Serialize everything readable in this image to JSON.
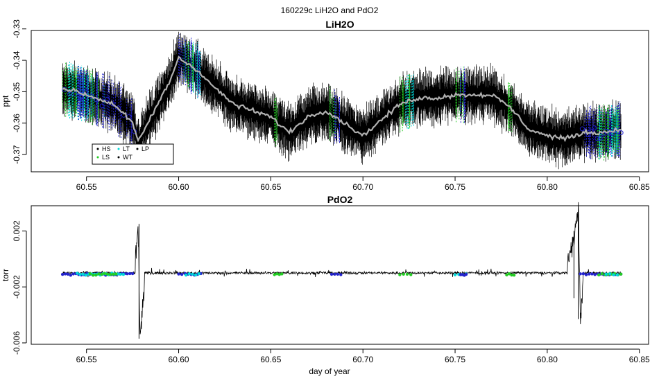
{
  "figure": {
    "suptitle": "160229c   LiH2O and PdO2",
    "xlabel": "day of year"
  },
  "colors": {
    "HS": "#000000",
    "LS": "#22cc22",
    "LT": "#00d8d8",
    "WT": "#000000",
    "LP": "#000000",
    "instrument_marker": "#2222cc",
    "running_mean": "#b0b0b0",
    "noise_trace": "#000000"
  },
  "chart_data": [
    {
      "type": "line",
      "title": "LiH2O",
      "xlabel": "",
      "ylabel": "ppt",
      "xlim": [
        60.52,
        60.855
      ],
      "ylim": [
        -0.3755,
        -0.3305
      ],
      "xticks": [
        "60.55",
        "60.60",
        "60.65",
        "60.70",
        "60.75",
        "60.80",
        "60.85"
      ],
      "xtick_values": [
        60.55,
        60.6,
        60.65,
        60.7,
        60.75,
        60.8,
        60.85
      ],
      "yticks": [
        "-0.33",
        "-0.34",
        "-0.35",
        "-0.36",
        "-0.37"
      ],
      "ytick_values": [
        -0.33,
        -0.34,
        -0.35,
        -0.36,
        -0.37
      ],
      "legend": {
        "position": "bottom-left",
        "entries": [
          "HS",
          "LS",
          "LT",
          "WT",
          "LP"
        ]
      },
      "series": [
        {
          "name": "",
          "style": "running mean (gray)",
          "x": [
            60.537,
            60.545,
            60.555,
            60.565,
            60.575,
            60.578,
            60.585,
            60.595,
            60.6,
            60.602,
            60.61,
            60.62,
            60.63,
            60.64,
            60.65,
            60.66,
            60.67,
            60.68,
            60.69,
            60.7,
            60.71,
            60.72,
            60.73,
            60.74,
            60.75,
            60.76,
            60.77,
            60.78,
            60.79,
            60.8,
            60.81,
            60.82,
            60.83,
            60.84
          ],
          "y": [
            -0.349,
            -0.35,
            -0.352,
            -0.354,
            -0.36,
            -0.366,
            -0.358,
            -0.347,
            -0.339,
            -0.34,
            -0.343,
            -0.349,
            -0.354,
            -0.356,
            -0.358,
            -0.363,
            -0.358,
            -0.356,
            -0.36,
            -0.364,
            -0.359,
            -0.354,
            -0.352,
            -0.352,
            -0.351,
            -0.351,
            -0.351,
            -0.355,
            -0.362,
            -0.364,
            -0.365,
            -0.363,
            -0.363,
            -0.362
          ]
        }
      ]
    },
    {
      "type": "line",
      "title": "PdO2",
      "xlabel": "day of year",
      "ylabel": "torr",
      "xlim": [
        60.52,
        60.855
      ],
      "ylim": [
        -0.0061,
        0.0038
      ],
      "xticks": [
        "60.55",
        "60.60",
        "60.65",
        "60.70",
        "60.75",
        "60.80",
        "60.85"
      ],
      "xtick_values": [
        60.55,
        60.6,
        60.65,
        60.7,
        60.75,
        60.8,
        60.85
      ],
      "yticks": [
        "-0.006",
        "-0.002",
        "0.002"
      ],
      "ytick_values": [
        -0.006,
        -0.002,
        0.002
      ],
      "series": [
        {
          "name": "",
          "style": "baseline with spikes",
          "x": [
            60.537,
            60.576,
            60.578,
            60.579,
            60.582,
            60.6,
            60.7,
            60.8,
            60.812,
            60.815,
            60.817,
            60.818,
            60.82,
            60.84
          ],
          "y": [
            -0.001,
            -0.0011,
            0.0025,
            -0.0057,
            -0.001,
            -0.001,
            -0.001,
            -0.001,
            -0.0001,
            0.0021,
            0.0033,
            -0.0043,
            -0.0011,
            -0.0011
          ]
        }
      ]
    }
  ]
}
